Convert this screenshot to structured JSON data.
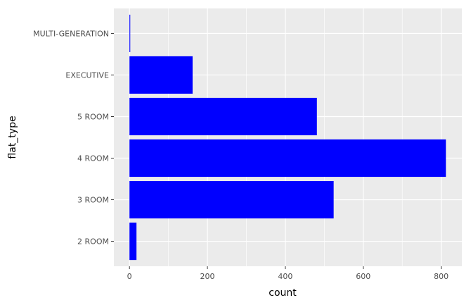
{
  "chart_data": {
    "type": "bar",
    "orientation": "horizontal",
    "categories": [
      "2 ROOM",
      "3 ROOM",
      "4 ROOM",
      "5 ROOM",
      "EXECUTIVE",
      "MULTI-GENERATION"
    ],
    "values": [
      18,
      524,
      812,
      481,
      162,
      2
    ],
    "xlabel": "count",
    "ylabel": "flat_type",
    "xlim": [
      -40,
      853
    ],
    "x_ticks": [
      0,
      200,
      400,
      600,
      800
    ],
    "bar_color": "#0000ff",
    "panel_color": "#ebebeb",
    "grid": true
  }
}
